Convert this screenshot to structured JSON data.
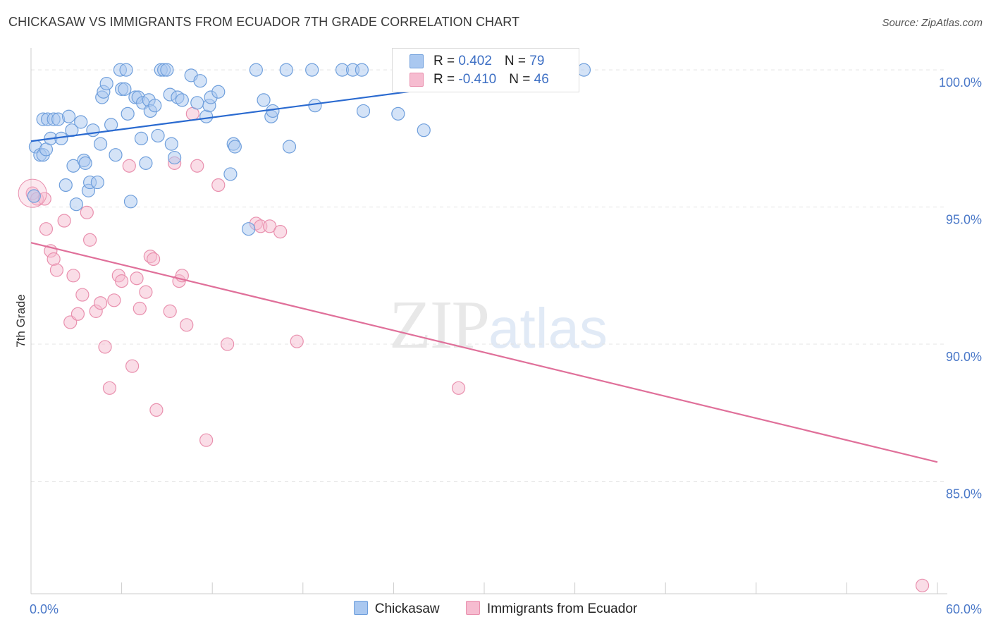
{
  "header": {
    "title": "CHICKASAW VS IMMIGRANTS FROM ECUADOR 7TH GRADE CORRELATION CHART",
    "source": "Source: ZipAtlas.com"
  },
  "watermark": {
    "zip": "ZIP",
    "atlas": "atlas"
  },
  "legend": {
    "rows": [
      {
        "r_label": "R = ",
        "r_value": "0.402",
        "n_label": "N = ",
        "n_value": "79"
      },
      {
        "r_label": "R = ",
        "r_value": "-0.410",
        "n_label": "N = ",
        "n_value": "46"
      }
    ]
  },
  "bottom_legend": {
    "items": [
      {
        "label": "Chickasaw"
      },
      {
        "label": "Immigrants from Ecuador"
      }
    ]
  },
  "colors": {
    "blue_fill": "#aac8f0",
    "blue_stroke": "#6f9fdc",
    "blue_line": "#2a6ad0",
    "pink_fill": "#f6bcd0",
    "pink_stroke": "#e990ae",
    "pink_line": "#e0709a",
    "tick": "#4a78c8",
    "grid": "#e4e4e4"
  },
  "chart_data": {
    "type": "scatter",
    "title": "CHICKASAW VS IMMIGRANTS FROM ECUADOR 7TH GRADE CORRELATION CHART",
    "xlabel": "",
    "ylabel": "7th Grade",
    "xlim": [
      0,
      60
    ],
    "ylim": [
      80.9,
      100.8
    ],
    "x_tick_labels": [
      {
        "value": 0,
        "label": "0.0%"
      },
      {
        "value": 60,
        "label": "60.0%"
      }
    ],
    "x_minor_ticks": [
      6,
      12,
      18,
      24,
      30,
      36,
      42,
      48,
      54
    ],
    "y_ticks": [
      {
        "value": 100,
        "label": "100.0%"
      },
      {
        "value": 95,
        "label": "95.0%"
      },
      {
        "value": 90,
        "label": "90.0%"
      },
      {
        "value": 85,
        "label": "85.0%"
      }
    ],
    "grid": "horizontal dashed",
    "legend_position": "top-center",
    "series": [
      {
        "name": "Chickasaw",
        "color": "#aac8f0",
        "trend": {
          "x": [
            0,
            36
          ],
          "y": [
            97.4,
            100.0
          ]
        },
        "points": [
          [
            0.2,
            95.4
          ],
          [
            0.3,
            97.2
          ],
          [
            0.6,
            96.9
          ],
          [
            0.8,
            96.9
          ],
          [
            0.8,
            98.2
          ],
          [
            1.0,
            97.1
          ],
          [
            1.1,
            98.2
          ],
          [
            1.3,
            97.5
          ],
          [
            1.5,
            98.2
          ],
          [
            1.8,
            98.2
          ],
          [
            2.0,
            97.5
          ],
          [
            2.3,
            95.8
          ],
          [
            2.5,
            98.3
          ],
          [
            2.7,
            97.8
          ],
          [
            2.8,
            96.5
          ],
          [
            3.0,
            95.1
          ],
          [
            3.3,
            98.1
          ],
          [
            3.5,
            96.7
          ],
          [
            3.6,
            96.6
          ],
          [
            3.8,
            95.6
          ],
          [
            3.9,
            95.9
          ],
          [
            4.1,
            97.8
          ],
          [
            4.4,
            95.9
          ],
          [
            4.6,
            97.3
          ],
          [
            4.7,
            99.0
          ],
          [
            4.8,
            99.2
          ],
          [
            5.0,
            99.5
          ],
          [
            5.3,
            98.0
          ],
          [
            5.6,
            96.9
          ],
          [
            5.9,
            100.0
          ],
          [
            6.0,
            99.3
          ],
          [
            6.2,
            99.3
          ],
          [
            6.3,
            100.0
          ],
          [
            6.4,
            98.4
          ],
          [
            6.6,
            95.2
          ],
          [
            6.9,
            99.0
          ],
          [
            7.1,
            99.0
          ],
          [
            7.3,
            97.5
          ],
          [
            7.4,
            98.8
          ],
          [
            7.6,
            96.6
          ],
          [
            7.8,
            98.9
          ],
          [
            7.9,
            98.5
          ],
          [
            8.2,
            98.7
          ],
          [
            8.4,
            97.6
          ],
          [
            8.6,
            100.0
          ],
          [
            8.8,
            100.0
          ],
          [
            9.0,
            100.0
          ],
          [
            9.2,
            99.1
          ],
          [
            9.3,
            97.3
          ],
          [
            9.5,
            96.8
          ],
          [
            9.7,
            99.0
          ],
          [
            10.0,
            98.9
          ],
          [
            10.6,
            99.8
          ],
          [
            11.0,
            98.8
          ],
          [
            11.2,
            99.6
          ],
          [
            11.6,
            98.3
          ],
          [
            11.8,
            98.7
          ],
          [
            11.9,
            99.0
          ],
          [
            12.4,
            99.2
          ],
          [
            13.2,
            96.2
          ],
          [
            13.4,
            97.3
          ],
          [
            13.5,
            97.2
          ],
          [
            14.4,
            94.2
          ],
          [
            14.9,
            100.0
          ],
          [
            15.4,
            98.9
          ],
          [
            15.9,
            98.3
          ],
          [
            16.0,
            98.5
          ],
          [
            16.9,
            100.0
          ],
          [
            17.1,
            97.2
          ],
          [
            18.6,
            100.0
          ],
          [
            18.8,
            98.7
          ],
          [
            20.6,
            100.0
          ],
          [
            21.3,
            100.0
          ],
          [
            21.9,
            100.0
          ],
          [
            22.0,
            98.5
          ],
          [
            24.3,
            98.4
          ],
          [
            25.0,
            100.0
          ],
          [
            26.0,
            97.8
          ],
          [
            36.6,
            100.0
          ]
        ]
      },
      {
        "name": "Immigrants from Ecuador",
        "color": "#f6bcd0",
        "trend": {
          "x": [
            0,
            60
          ],
          "y": [
            93.7,
            85.7
          ]
        },
        "points": [
          [
            0.1,
            95.5
          ],
          [
            0.4,
            95.3
          ],
          [
            0.9,
            95.3
          ],
          [
            1.0,
            94.2
          ],
          [
            1.3,
            93.4
          ],
          [
            1.5,
            93.1
          ],
          [
            1.7,
            92.7
          ],
          [
            2.2,
            94.5
          ],
          [
            2.6,
            90.8
          ],
          [
            2.8,
            92.5
          ],
          [
            3.1,
            91.1
          ],
          [
            3.4,
            91.8
          ],
          [
            3.7,
            94.8
          ],
          [
            3.9,
            93.8
          ],
          [
            4.3,
            91.2
          ],
          [
            4.6,
            91.5
          ],
          [
            4.9,
            89.9
          ],
          [
            5.2,
            88.4
          ],
          [
            5.5,
            91.6
          ],
          [
            5.8,
            92.5
          ],
          [
            6.0,
            92.3
          ],
          [
            6.5,
            96.5
          ],
          [
            6.7,
            89.2
          ],
          [
            7.0,
            92.4
          ],
          [
            7.2,
            91.3
          ],
          [
            7.6,
            91.9
          ],
          [
            7.9,
            93.2
          ],
          [
            8.1,
            93.1
          ],
          [
            8.3,
            87.6
          ],
          [
            9.2,
            91.2
          ],
          [
            9.5,
            96.6
          ],
          [
            9.8,
            92.3
          ],
          [
            10.0,
            92.5
          ],
          [
            10.3,
            90.7
          ],
          [
            10.7,
            98.4
          ],
          [
            11.0,
            96.5
          ],
          [
            11.6,
            86.5
          ],
          [
            12.4,
            95.8
          ],
          [
            13.0,
            90.0
          ],
          [
            14.9,
            94.4
          ],
          [
            15.2,
            94.3
          ],
          [
            15.8,
            94.3
          ],
          [
            16.5,
            94.1
          ],
          [
            17.6,
            90.1
          ],
          [
            28.3,
            88.4
          ],
          [
            59.0,
            81.2
          ]
        ]
      }
    ]
  }
}
